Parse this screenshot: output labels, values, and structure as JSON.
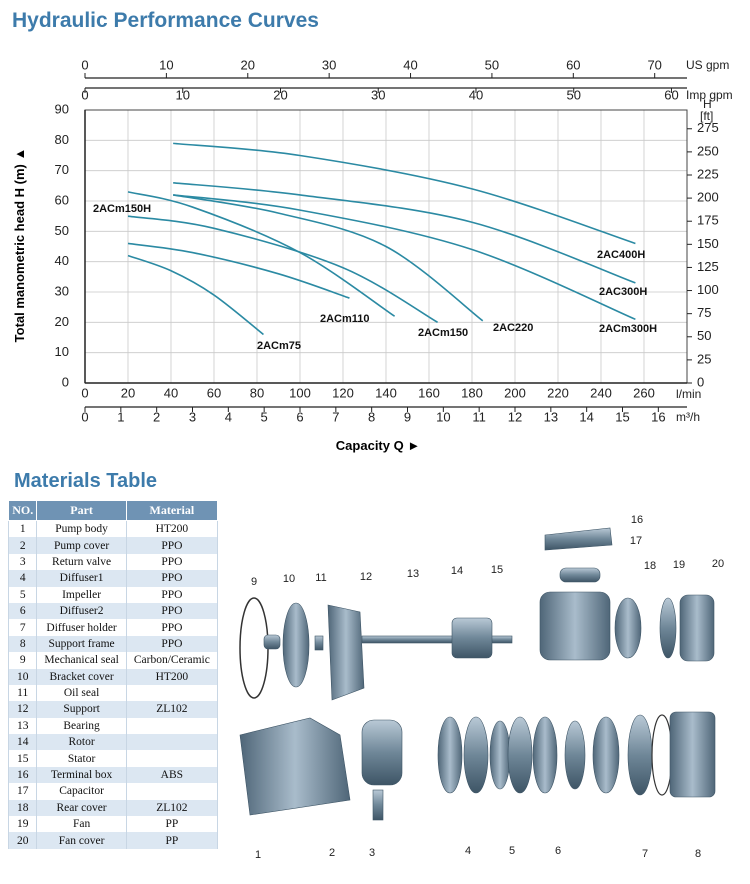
{
  "chart_title": "Hydraulic Performance Curves",
  "chart_data": {
    "type": "line",
    "ylabel": "Total manometric head H (m) ▲",
    "xlabel": "Capacity Q ►",
    "x_unit": "l/min",
    "xlim": [
      0,
      280
    ],
    "xticks": [
      0,
      20,
      40,
      60,
      80,
      100,
      120,
      140,
      160,
      180,
      200,
      220,
      240,
      260
    ],
    "ylim": [
      0,
      90
    ],
    "yticks": [
      0,
      10,
      20,
      30,
      40,
      50,
      60,
      70,
      80,
      90
    ],
    "y2_unit": "H",
    "y2_unit_sub": "[ft]",
    "y2lim": [
      0,
      295.3
    ],
    "y2ticks": [
      0,
      25,
      50,
      75,
      100,
      125,
      150,
      175,
      200,
      225,
      250,
      275
    ],
    "secondary_x_axes": [
      {
        "unit": "m³/h",
        "lim": [
          0,
          16.8
        ],
        "ticks": [
          0,
          1,
          2,
          3,
          4,
          5,
          6,
          7,
          8,
          9,
          10,
          11,
          12,
          13,
          14,
          15,
          16
        ]
      },
      {
        "unit": "US gpm",
        "lim": [
          0,
          73.97
        ],
        "ticks": [
          0,
          10,
          20,
          30,
          40,
          50,
          60,
          70
        ]
      },
      {
        "unit": "Imp gpm",
        "lim": [
          0,
          61.59
        ],
        "ticks": [
          0,
          10,
          20,
          30,
          40,
          50,
          60
        ]
      }
    ],
    "grid": true,
    "color": "#2b8aa3",
    "series": [
      {
        "name": "2ACm75",
        "x": [
          20,
          40,
          60,
          83
        ],
        "values": [
          42,
          37,
          29,
          16
        ]
      },
      {
        "name": "2ACm110",
        "x": [
          20,
          50,
          90,
          123
        ],
        "values": [
          46,
          43,
          36,
          28
        ]
      },
      {
        "name": "2ACm150H",
        "x": [
          20,
          50,
          100,
          144
        ],
        "values": [
          63,
          58,
          43,
          22
        ]
      },
      {
        "name": "2ACm150",
        "x": [
          20,
          60,
          120,
          164
        ],
        "values": [
          55,
          51,
          38,
          20
        ]
      },
      {
        "name": "2AC220",
        "x": [
          41,
          90,
          140,
          185
        ],
        "values": [
          62,
          56,
          45,
          20.5
        ]
      },
      {
        "name": "2ACm300H",
        "x": [
          41,
          100,
          180,
          256
        ],
        "values": [
          62,
          57,
          44,
          21
        ]
      },
      {
        "name": "2AC300H",
        "x": [
          41,
          100,
          180,
          256
        ],
        "values": [
          66,
          62,
          53,
          33
        ]
      },
      {
        "name": "2AC400H",
        "x": [
          41,
          100,
          180,
          256
        ],
        "values": [
          79,
          75,
          64,
          46
        ]
      }
    ]
  },
  "materials": {
    "title": "Materials Table",
    "header": [
      "NO.",
      "Part",
      "Material"
    ],
    "rows": [
      [
        1,
        "Pump body",
        "HT200"
      ],
      [
        2,
        "Pump cover",
        "PPO"
      ],
      [
        3,
        "Return valve",
        "PPO"
      ],
      [
        4,
        "Diffuser1",
        "PPO"
      ],
      [
        5,
        "Impeller",
        "PPO"
      ],
      [
        6,
        "Diffuser2",
        "PPO"
      ],
      [
        7,
        "Diffuser holder",
        "PPO"
      ],
      [
        8,
        "Support frame",
        "PPO"
      ],
      [
        9,
        "Mechanical seal",
        "Carbon/Ceramic"
      ],
      [
        10,
        "Bracket cover",
        "HT200"
      ],
      [
        11,
        "Oil seal",
        null
      ],
      [
        12,
        "Support",
        "ZL102"
      ],
      [
        13,
        "Bearing",
        null
      ],
      [
        14,
        "Rotor",
        null
      ],
      [
        15,
        "Stator",
        null
      ],
      [
        16,
        "Terminal box",
        "ABS"
      ],
      [
        17,
        "Capacitor",
        null
      ],
      [
        18,
        "Rear cover",
        "ZL102"
      ],
      [
        19,
        "Fan",
        "PP"
      ],
      [
        20,
        "Fan cover",
        "PP"
      ]
    ]
  },
  "diagram": {
    "callouts": [
      "1",
      "2",
      "3",
      "4",
      "5",
      "6",
      "7",
      "8",
      "9",
      "10",
      "11",
      "12",
      "13",
      "14",
      "15",
      "16",
      "17",
      "18",
      "19",
      "20"
    ]
  }
}
